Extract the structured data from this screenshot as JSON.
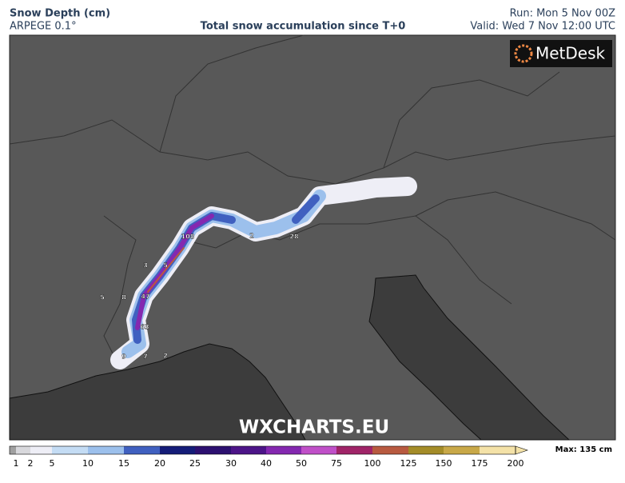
{
  "header": {
    "title": "Snow Depth (cm)",
    "model": "ARPEGE 0.1°",
    "subtitle": "Total snow accumulation since T+0",
    "run": "Run: Mon 5 Nov 00Z",
    "valid": "Valid: Wed 7 Nov 12:00 UTC"
  },
  "logo": "MetDesk",
  "watermark": "WXCHARTS.EU",
  "legend": {
    "max": "Max: 135 cm",
    "under_color": "#a0a0a0",
    "labels": [
      "1",
      "2",
      "5",
      "10",
      "15",
      "20",
      "25",
      "30",
      "40",
      "50",
      "75",
      "100",
      "125",
      "150",
      "175",
      "200"
    ],
    "colors": [
      "#d8d8dc",
      "#eeeef6",
      "#c4dcf4",
      "#9cc0ec",
      "#4060c0",
      "#141c78",
      "#2c1070",
      "#4c1488",
      "#8428b0",
      "#c050c8",
      "#a02468",
      "#b85a40",
      "#a48c28",
      "#c8a848",
      "#f4e2a8"
    ]
  },
  "point_labels": [
    "108",
    "2",
    "28",
    "3",
    "5",
    "5",
    "8",
    "47",
    "63",
    "9",
    "7",
    "2"
  ]
}
